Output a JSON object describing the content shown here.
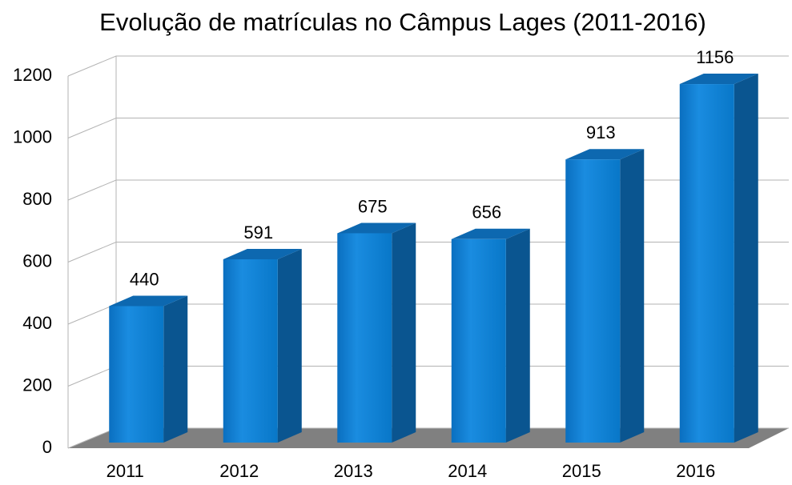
{
  "chart_data": {
    "type": "bar3d",
    "title": "Evolução de matrículas no Câmpus Lages (2011-2016)",
    "categories": [
      "2011",
      "2012",
      "2013",
      "2014",
      "2015",
      "2016"
    ],
    "values": [
      440,
      591,
      675,
      656,
      913,
      1156
    ],
    "color": "#0a84d8",
    "ylim": [
      0,
      1200
    ],
    "yticks": [
      0,
      200,
      400,
      600,
      800,
      1000,
      1200
    ],
    "grid": true
  }
}
